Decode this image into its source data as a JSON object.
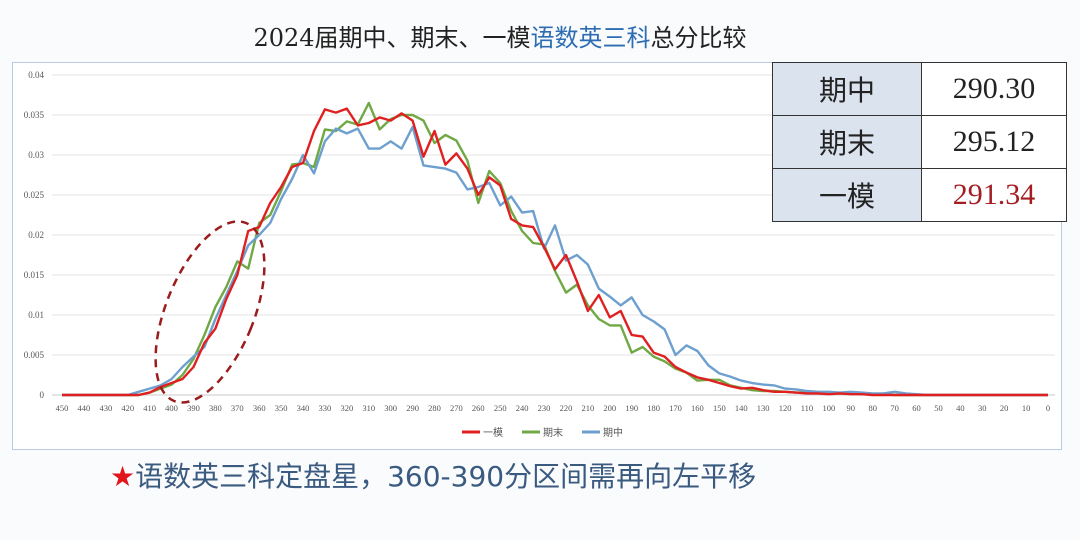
{
  "title": {
    "part1": "2024届期中、期末、一模",
    "highlight": "语数英三科",
    "part2": "总分比较"
  },
  "table": [
    {
      "label": "期中",
      "value": "290.30"
    },
    {
      "label": "期末",
      "value": "295.12"
    },
    {
      "label": "一模",
      "value": "291.34",
      "color": "#a31e22"
    }
  ],
  "note": {
    "star": "★",
    "text": "语数英三科定盘星，360-390分区间需再向左平移"
  },
  "colors": {
    "一模": "#e02020",
    "期末": "#70a845",
    "期中": "#6d9fcf",
    "annotation": "#9b1c1c"
  },
  "chart_data": {
    "type": "line",
    "title": "2024届期中、期末、一模语数英三科总分比较",
    "xlabel": "",
    "ylabel": "",
    "ylim": [
      0,
      0.04
    ],
    "yticks": [
      "0",
      "0.005",
      "0.01",
      "0.015",
      "0.02",
      "0.025",
      "0.03",
      "0.035",
      "0.04"
    ],
    "xticks": [
      "450",
      "440",
      "430",
      "420",
      "410",
      "400",
      "390",
      "380",
      "370",
      "360",
      "350",
      "340",
      "330",
      "320",
      "310",
      "300",
      "290",
      "280",
      "270",
      "260",
      "250",
      "240",
      "230",
      "220",
      "210",
      "200",
      "190",
      "180",
      "170",
      "160",
      "150",
      "140",
      "130",
      "120",
      "110",
      "100",
      "90",
      "80",
      "70",
      "60",
      "50",
      "40",
      "30",
      "20",
      "10",
      "0"
    ],
    "x_start": 450,
    "x_step": -5,
    "grid": true,
    "legend": "bottom",
    "series": [
      {
        "name": "一模",
        "values": [
          0,
          0,
          0,
          0,
          0,
          0,
          0,
          0,
          0.0003,
          0.001,
          0.0015,
          0.002,
          0.0035,
          0.0065,
          0.0083,
          0.012,
          0.015,
          0.0205,
          0.021,
          0.024,
          0.026,
          0.0285,
          0.029,
          0.033,
          0.0357,
          0.0353,
          0.0358,
          0.0337,
          0.034,
          0.0347,
          0.0343,
          0.0352,
          0.0343,
          0.0298,
          0.033,
          0.0288,
          0.0302,
          0.0283,
          0.025,
          0.0272,
          0.0262,
          0.022,
          0.0212,
          0.021,
          0.0185,
          0.0157,
          0.0175,
          0.0142,
          0.0105,
          0.0125,
          0.0097,
          0.0105,
          0.0075,
          0.0073,
          0.0053,
          0.0048,
          0.0035,
          0.0028,
          0.0022,
          0.0019,
          0.0015,
          0.0011,
          0.0008,
          0.0009,
          0.0006,
          0.0004,
          0.0004,
          0.0003,
          0.0002,
          0.0002,
          0.0001,
          0.0002,
          0.0001,
          0.0001,
          0,
          0,
          0,
          0,
          0,
          0,
          0,
          0,
          0,
          0,
          0,
          0,
          0,
          0,
          0,
          0,
          0
        ]
      },
      {
        "name": "期末",
        "values": [
          0,
          0,
          0,
          0,
          0,
          0,
          0,
          0,
          0.0003,
          0.0008,
          0.0013,
          0.0025,
          0.0045,
          0.0075,
          0.011,
          0.0135,
          0.0167,
          0.0158,
          0.0215,
          0.0225,
          0.0255,
          0.0288,
          0.029,
          0.0285,
          0.0332,
          0.033,
          0.0342,
          0.0338,
          0.0365,
          0.0332,
          0.0345,
          0.035,
          0.035,
          0.0343,
          0.0315,
          0.0325,
          0.0318,
          0.0293,
          0.024,
          0.028,
          0.0265,
          0.023,
          0.0205,
          0.019,
          0.0188,
          0.0155,
          0.0128,
          0.0138,
          0.0112,
          0.0095,
          0.0087,
          0.0087,
          0.0053,
          0.006,
          0.0048,
          0.0042,
          0.0033,
          0.0028,
          0.0018,
          0.0019,
          0.0019,
          0.0012,
          0.0009,
          0.0006,
          0.0005,
          0.0005,
          0.0004,
          0.0003,
          0.0003,
          0.0002,
          0.0002,
          0.0002,
          0.0002,
          0.0001,
          0.0001,
          0.0001,
          0,
          0,
          0,
          0,
          0,
          0,
          0,
          0,
          0,
          0,
          0,
          0,
          0,
          0,
          0
        ]
      },
      {
        "name": "期中",
        "values": [
          0,
          0,
          0,
          0,
          0,
          0,
          0,
          0.0004,
          0.0008,
          0.0012,
          0.002,
          0.0035,
          0.0048,
          0.006,
          0.0095,
          0.0125,
          0.0155,
          0.0187,
          0.02,
          0.0215,
          0.0245,
          0.027,
          0.03,
          0.0277,
          0.0317,
          0.0333,
          0.0327,
          0.0333,
          0.0308,
          0.0308,
          0.0317,
          0.0308,
          0.0335,
          0.0287,
          0.0285,
          0.0283,
          0.0278,
          0.0257,
          0.026,
          0.0265,
          0.0237,
          0.0248,
          0.0228,
          0.023,
          0.0183,
          0.0212,
          0.0168,
          0.0175,
          0.0163,
          0.0133,
          0.0123,
          0.0112,
          0.0122,
          0.01,
          0.0092,
          0.0082,
          0.005,
          0.0062,
          0.0055,
          0.0037,
          0.0027,
          0.0023,
          0.0018,
          0.0015,
          0.0013,
          0.0012,
          0.0008,
          0.0007,
          0.0005,
          0.0004,
          0.0004,
          0.0003,
          0.0004,
          0.0003,
          0.0002,
          0.0002,
          0.0004,
          0.0002,
          0.0001,
          0,
          0,
          0,
          0,
          0,
          0,
          0,
          0,
          0,
          0,
          0,
          0
        ]
      }
    ]
  }
}
